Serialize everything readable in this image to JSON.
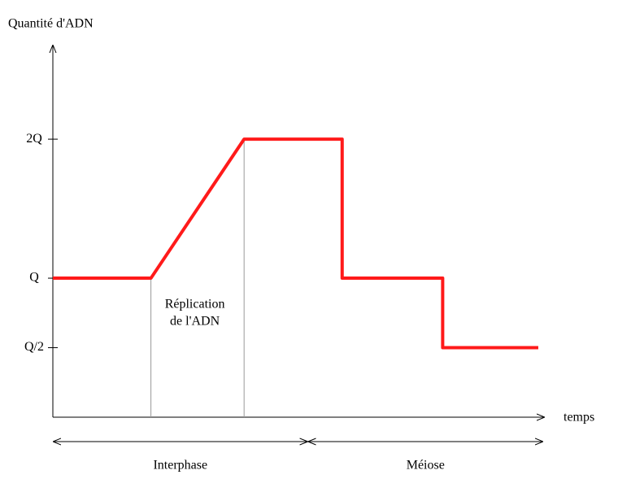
{
  "chart_data": {
    "type": "line",
    "y_label": "Quantité d'ADN",
    "x_label": "temps",
    "x": [
      0,
      2,
      3.9,
      5.9,
      5.9,
      7.95,
      7.95,
      9.9
    ],
    "series": [
      {
        "name": "ADN",
        "color": "#ff1a1a",
        "values": [
          1,
          1,
          2,
          2,
          1,
          1,
          0.5,
          0.5
        ]
      }
    ],
    "xlim": [
      0,
      10
    ],
    "ylim": [
      0,
      2.65
    ],
    "yticks": [
      {
        "value": 0.5,
        "label": "Q/2"
      },
      {
        "value": 1,
        "label": "Q"
      },
      {
        "value": 2,
        "label": "2Q"
      }
    ],
    "phase_lines": [
      2,
      3.9
    ],
    "annotation": [
      "Réplication",
      "de l'ADN"
    ],
    "phases": [
      {
        "label": "Interphase",
        "start": 0,
        "end": 5.2
      },
      {
        "label": "Méiose",
        "start": 5.2,
        "end": 10
      }
    ]
  }
}
